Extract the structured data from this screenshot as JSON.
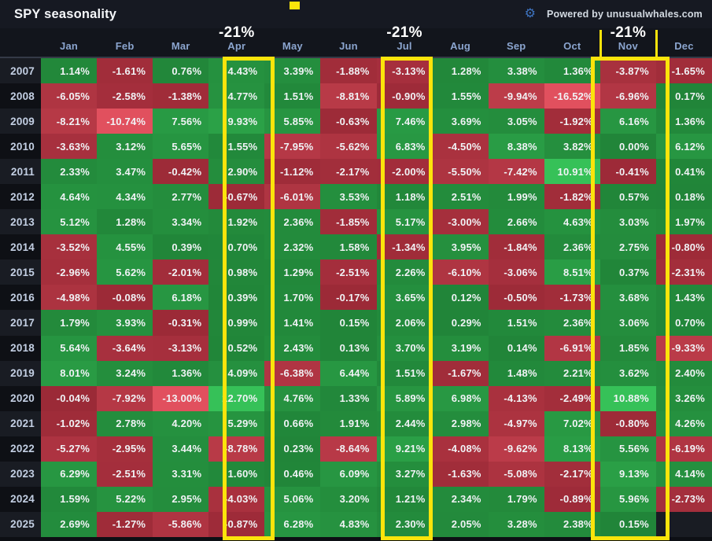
{
  "title": "SPY seasonality",
  "powered_by": "Powered by unusualwhales.com",
  "icons": {
    "gear": "gear-icon"
  },
  "annotations": {
    "label": "-21%",
    "highlighted_columns": [
      "Apr",
      "Jul",
      "Nov"
    ],
    "highlight_color": "#fbe40b"
  },
  "colors": {
    "positive_low": "#1d7a33",
    "positive_high": "#36c158",
    "negative_low": "#8f2330",
    "negative_high": "#e1505e",
    "bright_threshold": 10
  },
  "chart_data": {
    "type": "heatmap",
    "title": "SPY seasonality",
    "columns": [
      "Jan",
      "Feb",
      "Mar",
      "Apr",
      "May",
      "Jun",
      "Jul",
      "Aug",
      "Sep",
      "Oct",
      "Nov",
      "Dec"
    ],
    "value_unit": "%",
    "rows": [
      {
        "year": "2007",
        "values": [
          1.14,
          -1.61,
          0.76,
          4.43,
          3.39,
          -1.88,
          -3.13,
          1.28,
          3.38,
          1.36,
          -3.87,
          -1.65
        ]
      },
      {
        "year": "2008",
        "values": [
          -6.05,
          -2.58,
          -1.38,
          4.77,
          1.51,
          -8.81,
          -0.9,
          1.55,
          -9.94,
          -16.52,
          -6.96,
          0.17
        ]
      },
      {
        "year": "2009",
        "values": [
          -8.21,
          -10.74,
          7.56,
          9.93,
          5.85,
          -0.63,
          7.46,
          3.69,
          3.05,
          -1.92,
          6.16,
          1.36
        ]
      },
      {
        "year": "2010",
        "values": [
          -3.63,
          3.12,
          5.65,
          1.55,
          -7.95,
          -5.62,
          6.83,
          -4.5,
          8.38,
          3.82,
          0.0,
          6.12
        ]
      },
      {
        "year": "2011",
        "values": [
          2.33,
          3.47,
          -0.42,
          2.9,
          -1.12,
          -2.17,
          -2.0,
          -5.5,
          -7.42,
          10.91,
          -0.41,
          0.41
        ]
      },
      {
        "year": "2012",
        "values": [
          4.64,
          4.34,
          2.77,
          -0.67,
          -6.01,
          3.53,
          1.18,
          2.51,
          1.99,
          -1.82,
          0.57,
          0.18
        ]
      },
      {
        "year": "2013",
        "values": [
          5.12,
          1.28,
          3.34,
          1.92,
          2.36,
          -1.85,
          5.17,
          -3.0,
          2.66,
          4.63,
          3.03,
          1.97
        ]
      },
      {
        "year": "2014",
        "values": [
          -3.52,
          4.55,
          0.39,
          0.7,
          2.32,
          1.58,
          -1.34,
          3.95,
          -1.84,
          2.36,
          2.75,
          -0.8
        ]
      },
      {
        "year": "2015",
        "values": [
          -2.96,
          5.62,
          -2.01,
          0.98,
          1.29,
          -2.51,
          2.26,
          -6.1,
          -3.06,
          8.51,
          0.37,
          -2.31
        ]
      },
      {
        "year": "2016",
        "values": [
          -4.98,
          -0.08,
          6.18,
          0.39,
          1.7,
          -0.17,
          3.65,
          0.12,
          -0.5,
          -1.73,
          3.68,
          1.43
        ]
      },
      {
        "year": "2017",
        "values": [
          1.79,
          3.93,
          -0.31,
          0.99,
          1.41,
          0.15,
          2.06,
          0.29,
          1.51,
          2.36,
          3.06,
          0.7
        ]
      },
      {
        "year": "2018",
        "values": [
          5.64,
          -3.64,
          -3.13,
          0.52,
          2.43,
          0.13,
          3.7,
          3.19,
          0.14,
          -6.91,
          1.85,
          -9.33
        ]
      },
      {
        "year": "2019",
        "values": [
          8.01,
          3.24,
          1.36,
          4.09,
          -6.38,
          6.44,
          1.51,
          -1.67,
          1.48,
          2.21,
          3.62,
          2.4
        ]
      },
      {
        "year": "2020",
        "values": [
          -0.04,
          -7.92,
          -13.0,
          12.7,
          4.76,
          1.33,
          5.89,
          6.98,
          -4.13,
          -2.49,
          10.88,
          3.26
        ]
      },
      {
        "year": "2021",
        "values": [
          -1.02,
          2.78,
          4.2,
          5.29,
          0.66,
          1.91,
          2.44,
          2.98,
          -4.97,
          7.02,
          -0.8,
          4.26
        ]
      },
      {
        "year": "2022",
        "values": [
          -5.27,
          -2.95,
          3.44,
          -8.78,
          0.23,
          -8.64,
          9.21,
          -4.08,
          -9.62,
          8.13,
          5.56,
          -6.19
        ]
      },
      {
        "year": "2023",
        "values": [
          6.29,
          -2.51,
          3.31,
          1.6,
          0.46,
          6.09,
          3.27,
          -1.63,
          -5.08,
          -2.17,
          9.13,
          4.14
        ]
      },
      {
        "year": "2024",
        "values": [
          1.59,
          5.22,
          2.95,
          -4.03,
          5.06,
          3.2,
          1.21,
          2.34,
          1.79,
          -0.89,
          5.96,
          -2.73
        ]
      },
      {
        "year": "2025",
        "values": [
          2.69,
          -1.27,
          -5.86,
          -0.87,
          6.28,
          4.83,
          2.3,
          2.05,
          3.28,
          2.38,
          0.15,
          null
        ]
      }
    ]
  }
}
